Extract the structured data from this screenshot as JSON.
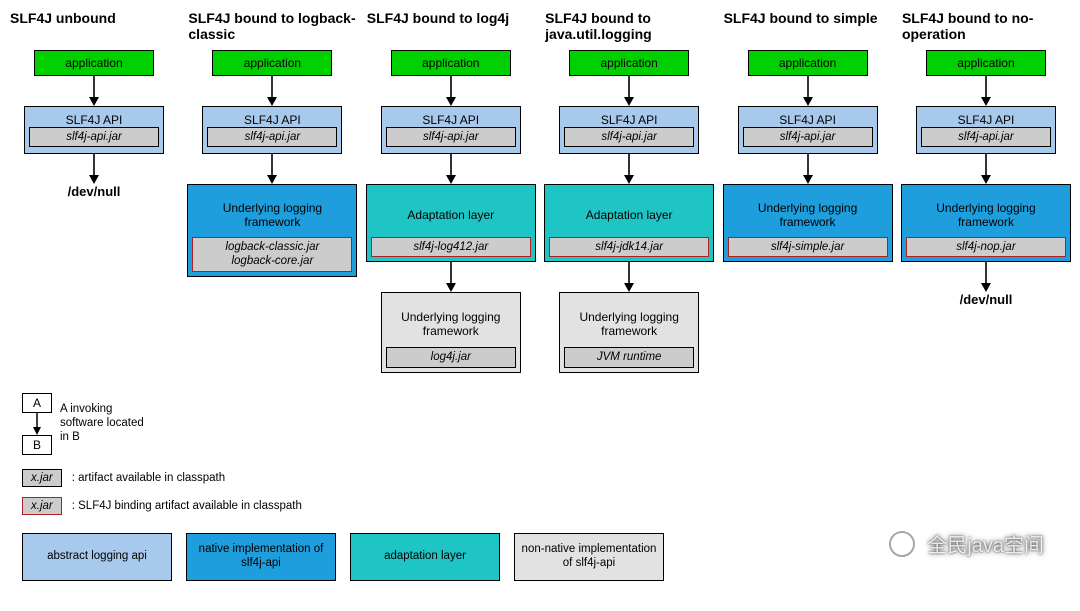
{
  "colors": {
    "green": "#00d000",
    "lightblue": "#a6c9ec",
    "blue": "#1f9ede",
    "teal": "#1fc5c5",
    "grey": "#cccccc",
    "lightgrey": "#e2e2e2",
    "jar_border_red": "#b02020",
    "black": "#000000",
    "bg": "#ffffff"
  },
  "columns": [
    {
      "title": "SLF4J unbound",
      "app_label": "application",
      "api_label": "SLF4J API",
      "api_jar": "slf4j-api.jar",
      "impl": null,
      "under": null,
      "terminal": "/dev/null"
    },
    {
      "title": "SLF4J bound to logback-classic",
      "app_label": "application",
      "api_label": "SLF4J API",
      "api_jar": "slf4j-api.jar",
      "impl": {
        "label": "Underlying logging framework",
        "color": "blue",
        "jars": [
          "logback-classic.jar\nlogback-core.jar"
        ],
        "jar_red_border": true
      },
      "under": null,
      "terminal": null
    },
    {
      "title": "SLF4J bound to log4j",
      "app_label": "application",
      "api_label": "SLF4J API",
      "api_jar": "slf4j-api.jar",
      "impl": {
        "label": "Adaptation layer",
        "color": "teal",
        "jars": [
          "slf4j-log412.jar"
        ],
        "jar_red_border": true
      },
      "under": {
        "label": "Underlying logging framework",
        "jar": "log4j.jar"
      },
      "terminal": null
    },
    {
      "title": "SLF4J bound to java.util.logging",
      "app_label": "application",
      "api_label": "SLF4J API",
      "api_jar": "slf4j-api.jar",
      "impl": {
        "label": "Adaptation layer",
        "color": "teal",
        "jars": [
          "slf4j-jdk14.jar"
        ],
        "jar_red_border": true
      },
      "under": {
        "label": "Underlying logging framework",
        "jar": "JVM runtime"
      },
      "terminal": null
    },
    {
      "title": "SLF4J bound to simple",
      "app_label": "application",
      "api_label": "SLF4J API",
      "api_jar": "slf4j-api.jar",
      "impl": {
        "label": "Underlying logging framework",
        "color": "blue",
        "jars": [
          "slf4j-simple.jar"
        ],
        "jar_red_border": true
      },
      "under": null,
      "terminal": null
    },
    {
      "title": "SLF4J bound to no-operation",
      "app_label": "application",
      "api_label": "SLF4J API",
      "api_jar": "slf4j-api.jar",
      "impl": {
        "label": "Underlying logging framework",
        "color": "blue",
        "jars": [
          "slf4j-nop.jar"
        ],
        "jar_red_border": true
      },
      "under": null,
      "terminal": "/dev/null"
    }
  ],
  "legend": {
    "ab": {
      "a": "A",
      "b": "B",
      "text": "A invoking\nsoftware located\nin B"
    },
    "jar_plain": {
      "label": "x.jar",
      "desc": ": artifact available in classpath"
    },
    "jar_red": {
      "label": "x.jar",
      "desc": ": SLF4J binding artifact available in classpath"
    },
    "color_boxes": [
      {
        "color": "lightblue",
        "label": "abstract logging api"
      },
      {
        "color": "blue",
        "label": "native implementation of slf4j-api"
      },
      {
        "color": "teal",
        "label": "adaptation layer"
      },
      {
        "color": "lightgrey",
        "label": "non-native implementation of slf4j-api"
      }
    ]
  },
  "watermark": "全民java空间"
}
